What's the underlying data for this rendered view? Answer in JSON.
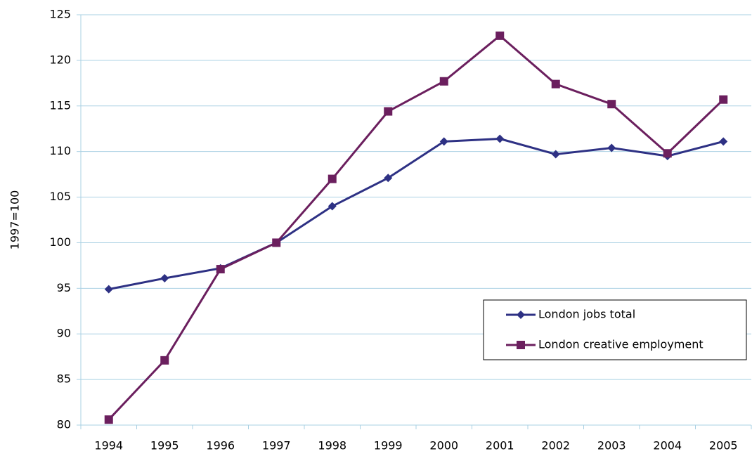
{
  "chart_data": {
    "type": "line",
    "y_label": "1997=100",
    "categories": [
      "1994",
      "1995",
      "1996",
      "1997",
      "1998",
      "1999",
      "2000",
      "2001",
      "2002",
      "2003",
      "2004",
      "2005"
    ],
    "series": [
      {
        "name": "London jobs total",
        "color": "#2e3184",
        "marker": "diamond",
        "values": [
          94.9,
          96.1,
          97.2,
          100,
          104.0,
          107.1,
          111.1,
          111.4,
          109.7,
          110.4,
          109.5,
          111.1
        ]
      },
      {
        "name": "London creative employment",
        "color": "#6b1f5e",
        "marker": "square",
        "values": [
          80.6,
          87.1,
          97.1,
          100,
          107.0,
          114.4,
          117.7,
          122.7,
          117.4,
          115.2,
          109.8,
          115.7
        ]
      }
    ],
    "ylim": [
      80,
      125
    ],
    "yticks": [
      80,
      85,
      90,
      95,
      100,
      105,
      110,
      115,
      120,
      125
    ],
    "grid": true,
    "legend": "lower-right"
  }
}
